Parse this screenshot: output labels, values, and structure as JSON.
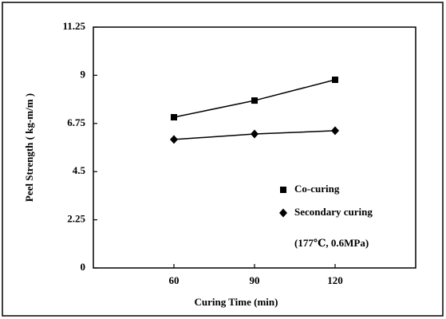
{
  "chart_data": {
    "type": "line",
    "xlabel": "Curing  Time (min)",
    "ylabel": "Peel Strength ( kg-m/m )",
    "x": [
      60,
      90,
      120
    ],
    "series": [
      {
        "name": "Co-curing",
        "color": "#000000",
        "marker": "square",
        "values": [
          7.04,
          7.82,
          8.79
        ]
      },
      {
        "name": "Secondary curing",
        "color": "#000000",
        "marker": "diamond",
        "values": [
          6.0,
          6.26,
          6.41
        ]
      }
    ],
    "annotation": "(177℃, 0.6MPa)",
    "xlim": [
      30,
      150
    ],
    "xticks": [
      60,
      90,
      120
    ],
    "ylim": [
      0,
      11.25
    ],
    "yticks": [
      0,
      2.25,
      4.5,
      6.75,
      9,
      11.25
    ],
    "legend": "lower right"
  }
}
